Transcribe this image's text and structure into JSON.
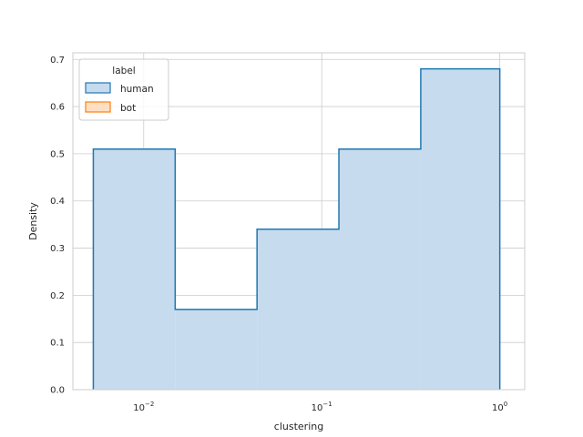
{
  "chart_data": {
    "type": "histogram",
    "xlabel": "clustering",
    "ylabel": "Density",
    "x_scale": "log",
    "xlim": [
      0.004,
      1.38
    ],
    "ylim": [
      0,
      0.714
    ],
    "grid": true,
    "x_ticks": [
      {
        "value": 0.01,
        "base": "10",
        "exp": "−2"
      },
      {
        "value": 0.1,
        "base": "10",
        "exp": "−1"
      },
      {
        "value": 1,
        "base": "10",
        "exp": "0"
      }
    ],
    "y_ticks": [
      {
        "value": 0.0,
        "label": "0.0"
      },
      {
        "value": 0.1,
        "label": "0.1"
      },
      {
        "value": 0.2,
        "label": "0.2"
      },
      {
        "value": 0.3,
        "label": "0.3"
      },
      {
        "value": 0.4,
        "label": "0.4"
      },
      {
        "value": 0.5,
        "label": "0.5"
      },
      {
        "value": 0.6,
        "label": "0.6"
      },
      {
        "value": 0.7,
        "label": "0.7"
      }
    ],
    "legend": {
      "title": "label",
      "placement": "top-left",
      "entries": [
        {
          "name": "human",
          "stroke": "#1f77b4",
          "fill": "#c6dbee"
        },
        {
          "name": "bot",
          "stroke": "#ff7f0e",
          "fill": "#ffdfc2"
        }
      ]
    },
    "series": [
      {
        "name": "human",
        "stroke": "#1f77b4",
        "fill": "#c6dbee",
        "bins": [
          {
            "x0": 0.00521,
            "x1": 0.01502,
            "density": 0.51
          },
          {
            "x0": 0.01502,
            "x1": 0.04329,
            "density": 0.17
          },
          {
            "x0": 0.04329,
            "x1": 0.12481,
            "density": 0.34
          },
          {
            "x0": 0.12481,
            "x1": 0.35981,
            "density": 0.51
          },
          {
            "x0": 0.35981,
            "x1": 1.0,
            "density": 0.68
          }
        ]
      }
    ]
  }
}
